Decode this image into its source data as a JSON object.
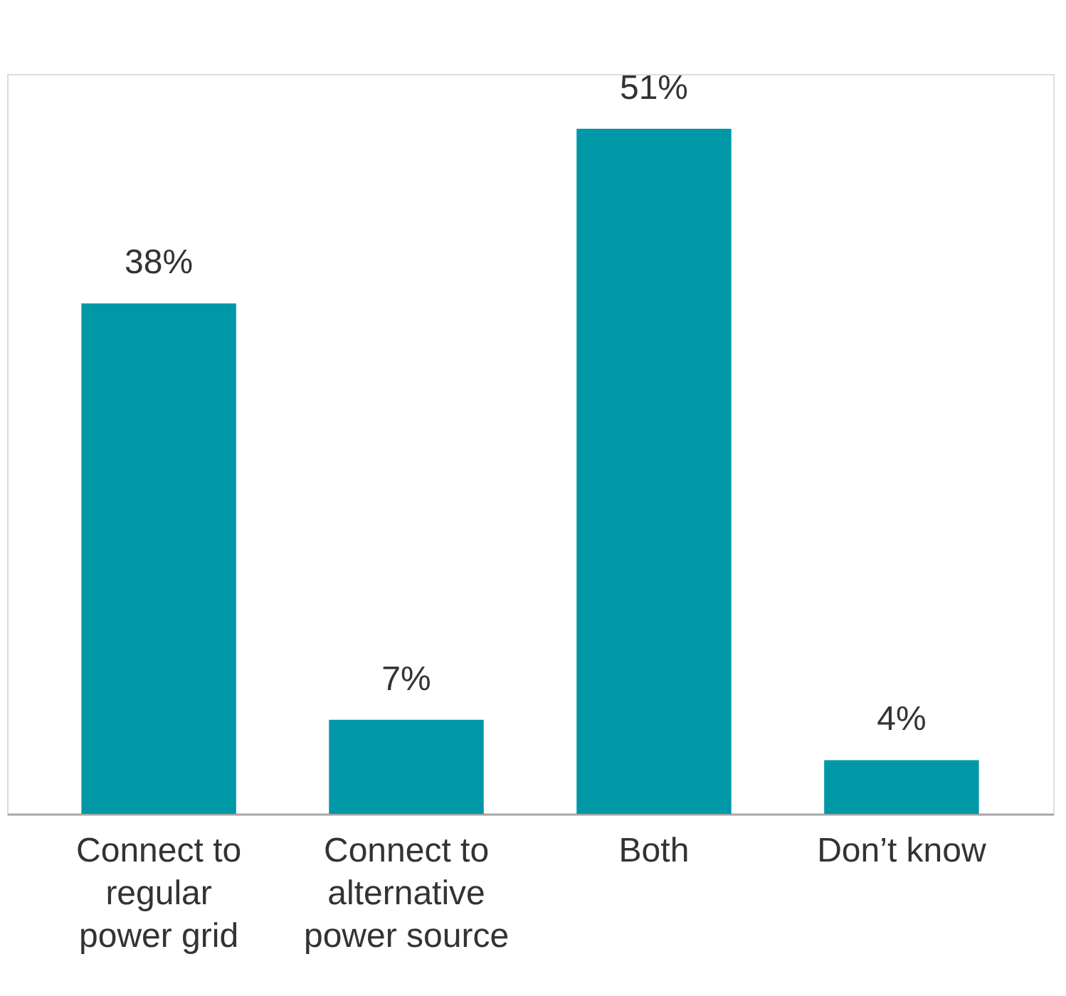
{
  "chart_data": {
    "type": "bar",
    "categories": [
      "Connect to regular power grid",
      "Connect to alternative power source",
      "Both",
      "Don’t know"
    ],
    "values": [
      38,
      7,
      51,
      4
    ],
    "color": "#0097a7",
    "value_labels": [
      "38%",
      "7%",
      "51%",
      "4%"
    ],
    "grid": false
  }
}
